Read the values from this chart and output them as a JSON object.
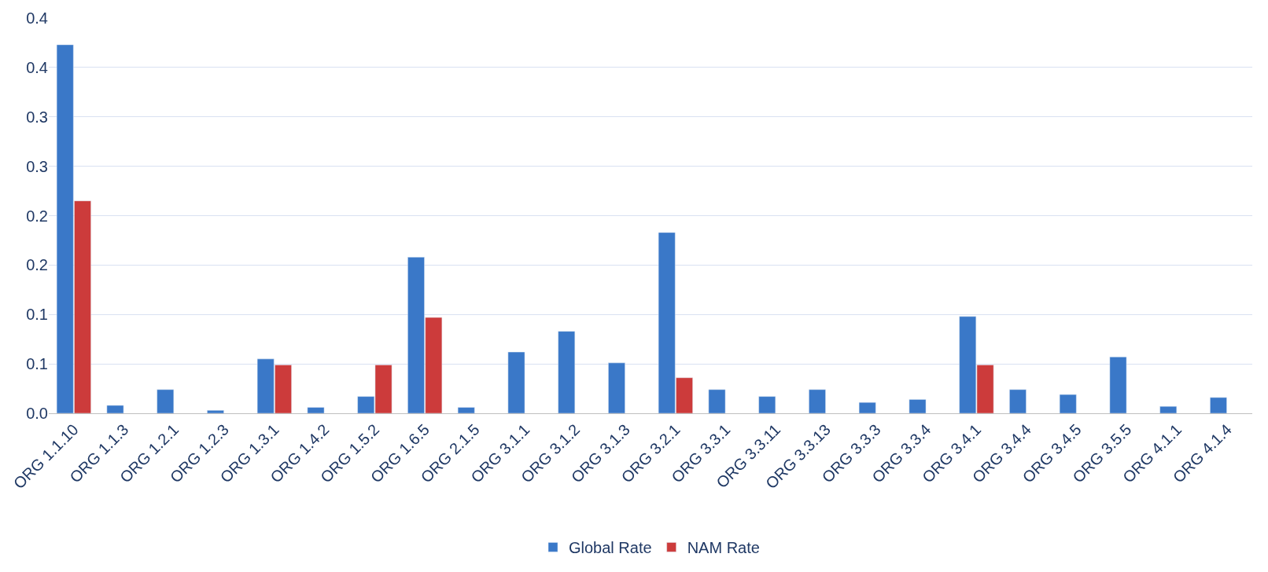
{
  "chart_data": {
    "type": "bar",
    "categories": [
      "ORG 1.1.10",
      "ORG 1.1.3",
      "ORG 1.2.1",
      "ORG 1.2.3",
      "ORG 1.3.1",
      "ORG 1.4.2",
      "ORG 1.5.2",
      "ORG 1.6.5",
      "ORG 2.1.5",
      "ORG 3.1.1",
      "ORG 3.1.2",
      "ORG 3.1.3",
      "ORG 3.2.1",
      "ORG 3.3.1",
      "ORG 3.3.11",
      "ORG 3.3.13",
      "ORG 3.3.3",
      "ORG 3.3.4",
      "ORG 3.4.1",
      "ORG 3.4.4",
      "ORG 3.4.5",
      "ORG 3.5.5",
      "ORG 4.1.1",
      "ORG 4.1.4"
    ],
    "series": [
      {
        "name": "Global Rate",
        "color": "#3a78c8",
        "values": [
          0.373,
          0.008,
          0.024,
          0.003,
          0.055,
          0.006,
          0.017,
          0.158,
          0.006,
          0.062,
          0.083,
          0.051,
          0.183,
          0.024,
          0.017,
          0.024,
          0.011,
          0.014,
          0.098,
          0.024,
          0.019,
          0.057,
          0.007,
          0.016
        ]
      },
      {
        "name": "NAM Rate",
        "color": "#cc3b3b",
        "values": [
          0.215,
          null,
          null,
          null,
          0.049,
          null,
          0.049,
          0.097,
          null,
          null,
          null,
          null,
          0.036,
          null,
          null,
          null,
          null,
          null,
          0.049,
          null,
          null,
          null,
          null,
          null
        ]
      }
    ],
    "ylim": [
      0,
      0.4
    ],
    "yticks": [
      {
        "value": 0,
        "label": "0.0"
      },
      {
        "value": 0.05,
        "label": "0.1"
      },
      {
        "value": 0.1,
        "label": "0.1"
      },
      {
        "value": 0.15,
        "label": "0.2"
      },
      {
        "value": 0.2,
        "label": "0.2"
      },
      {
        "value": 0.25,
        "label": "0.3"
      },
      {
        "value": 0.3,
        "label": "0.3"
      },
      {
        "value": 0.35,
        "label": "0.4"
      },
      {
        "value": 0.4,
        "label": "0.4"
      }
    ],
    "grid": "y",
    "legend": "bottom"
  }
}
